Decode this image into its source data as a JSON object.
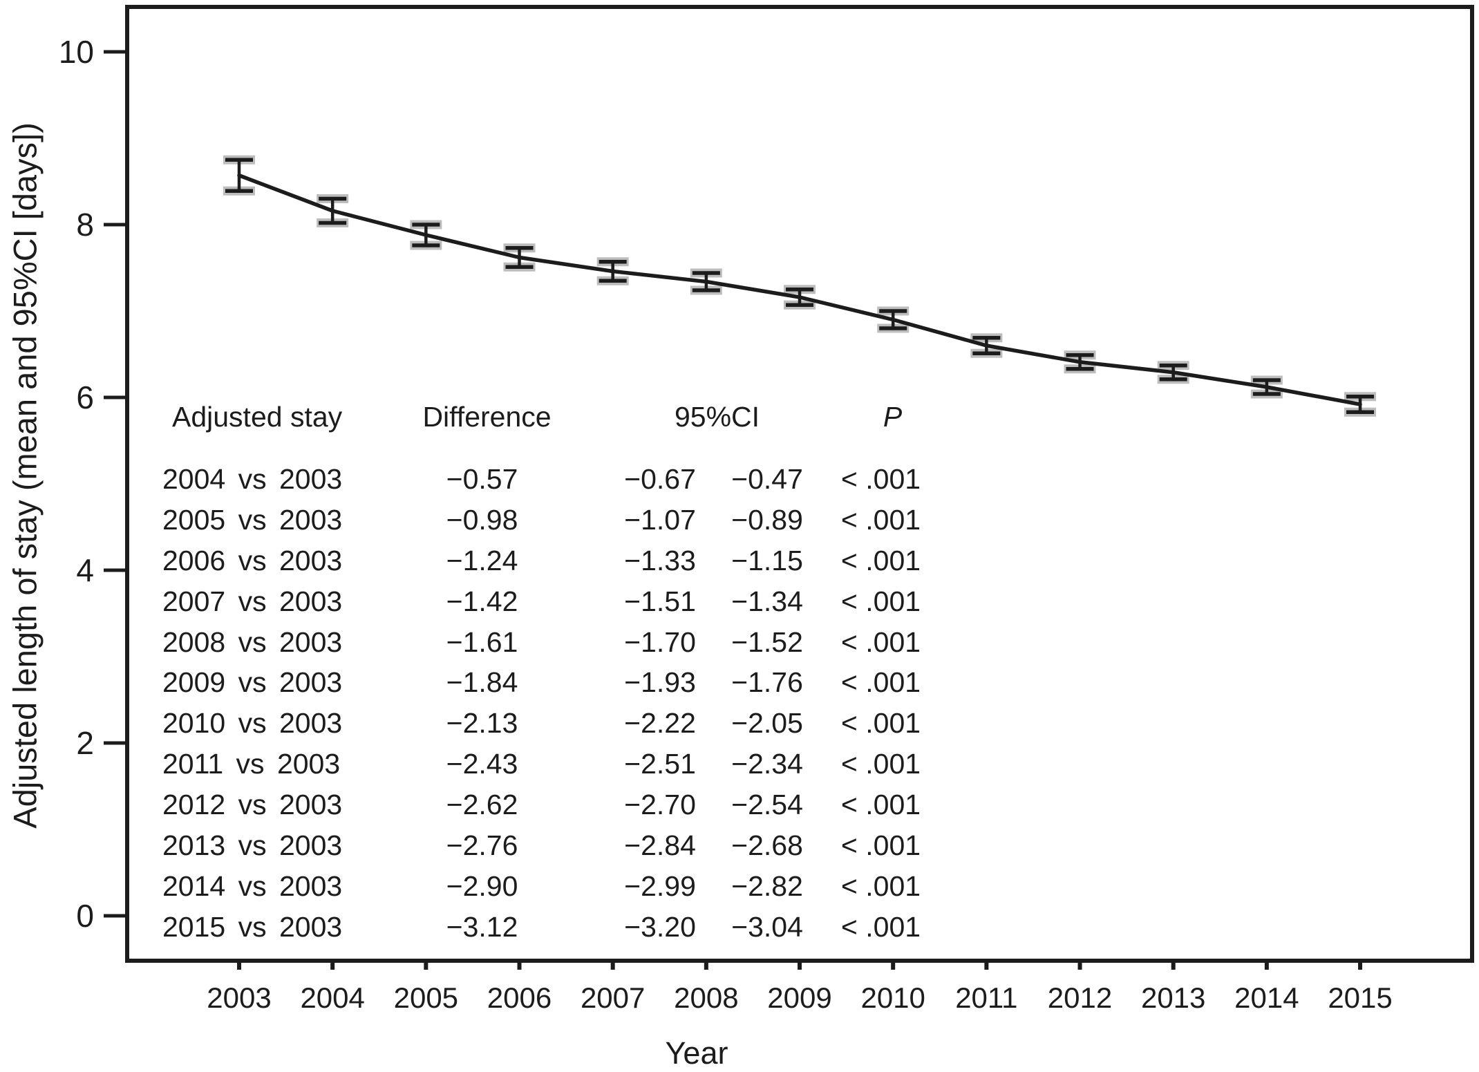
{
  "chart_data": {
    "type": "line",
    "title": "",
    "xlabel": "Year",
    "ylabel": "Adjusted length of stay (mean and 95%CI [days])",
    "x": [
      2003,
      2004,
      2005,
      2006,
      2007,
      2008,
      2009,
      2010,
      2011,
      2012,
      2013,
      2014,
      2015
    ],
    "series": [
      {
        "name": "Adjusted mean length of stay",
        "values": [
          8.57,
          8.16,
          7.88,
          7.62,
          7.46,
          7.34,
          7.16,
          6.9,
          6.6,
          6.41,
          6.29,
          6.12,
          5.92
        ],
        "ci_halfwidth": [
          0.18,
          0.14,
          0.12,
          0.11,
          0.11,
          0.1,
          0.09,
          0.1,
          0.09,
          0.08,
          0.08,
          0.08,
          0.09
        ]
      }
    ],
    "ylim": [
      -0.5,
      10.5
    ],
    "yticks": [
      0,
      2,
      4,
      6,
      8,
      10
    ],
    "grid": false,
    "legend": "none",
    "line_color": "#1c1c1c",
    "axis_color": "#1c1c1c",
    "errorbar_halo_color": "#bdbdbd"
  },
  "inset_table": {
    "headers": {
      "comparison": "Adjusted stay",
      "difference": "Difference",
      "ci": "95%CI",
      "p": "P"
    },
    "rows": [
      {
        "comparison": "2004 vs 2003",
        "difference": "−0.57",
        "ci_low": "−0.67",
        "ci_high": "−0.47",
        "p": "< .001"
      },
      {
        "comparison": "2005 vs 2003",
        "difference": "−0.98",
        "ci_low": "−1.07",
        "ci_high": "−0.89",
        "p": "< .001"
      },
      {
        "comparison": "2006 vs 2003",
        "difference": "−1.24",
        "ci_low": "−1.33",
        "ci_high": "−1.15",
        "p": "< .001"
      },
      {
        "comparison": "2007 vs 2003",
        "difference": "−1.42",
        "ci_low": "−1.51",
        "ci_high": "−1.34",
        "p": "< .001"
      },
      {
        "comparison": "2008 vs 2003",
        "difference": "−1.61",
        "ci_low": "−1.70",
        "ci_high": "−1.52",
        "p": "< .001"
      },
      {
        "comparison": "2009 vs 2003",
        "difference": "−1.84",
        "ci_low": "−1.93",
        "ci_high": "−1.76",
        "p": "< .001"
      },
      {
        "comparison": "2010 vs 2003",
        "difference": "−2.13",
        "ci_low": "−2.22",
        "ci_high": "−2.05",
        "p": "< .001"
      },
      {
        "comparison": "2011 vs 2003",
        "difference": "−2.43",
        "ci_low": "−2.51",
        "ci_high": "−2.34",
        "p": "< .001"
      },
      {
        "comparison": "2012 vs 2003",
        "difference": "−2.62",
        "ci_low": "−2.70",
        "ci_high": "−2.54",
        "p": "< .001"
      },
      {
        "comparison": "2013 vs 2003",
        "difference": "−2.76",
        "ci_low": "−2.84",
        "ci_high": "−2.68",
        "p": "< .001"
      },
      {
        "comparison": "2014 vs 2003",
        "difference": "−2.90",
        "ci_low": "−2.99",
        "ci_high": "−2.82",
        "p": "< .001"
      },
      {
        "comparison": "2015 vs 2003",
        "difference": "−3.12",
        "ci_low": "−3.20",
        "ci_high": "−3.04",
        "p": "< .001"
      }
    ]
  }
}
